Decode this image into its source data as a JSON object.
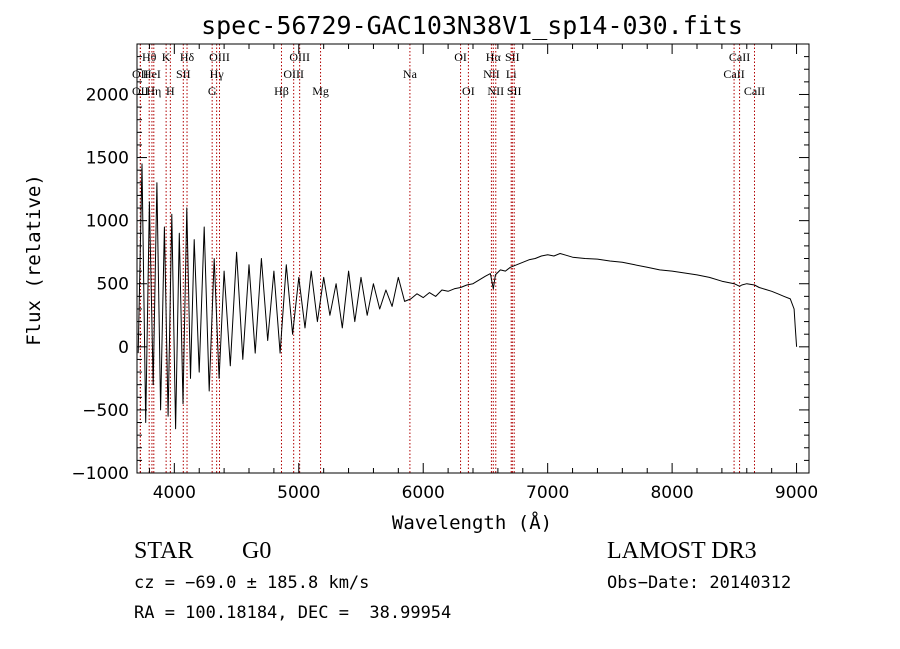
{
  "chart_data": {
    "type": "line",
    "title": "spec-56729-GAC103N38V1_sp14-030.fits",
    "xlabel": "Wavelength (Å)",
    "ylabel": "Flux (relative)",
    "xlim": [
      3700,
      9100
    ],
    "ylim": [
      -1000,
      2400
    ],
    "xticks": [
      4000,
      5000,
      6000,
      7000,
      8000,
      9000
    ],
    "yticks": [
      -1000,
      -500,
      0,
      500,
      1000,
      1500,
      2000
    ],
    "xtick_labels": [
      "4000",
      "5000",
      "6000",
      "7000",
      "8000",
      "9000"
    ],
    "ytick_labels": [
      "−1000",
      "−500",
      "0",
      "500",
      "1000",
      "1500",
      "2000"
    ],
    "series": [
      {
        "name": "spectrum",
        "color": "#000000",
        "x": [
          3710,
          3740,
          3770,
          3800,
          3830,
          3860,
          3890,
          3920,
          3950,
          3980,
          4010,
          4040,
          4070,
          4100,
          4130,
          4160,
          4200,
          4240,
          4280,
          4320,
          4360,
          4400,
          4450,
          4500,
          4550,
          4600,
          4650,
          4700,
          4750,
          4800,
          4850,
          4900,
          4950,
          5000,
          5050,
          5100,
          5150,
          5200,
          5250,
          5300,
          5350,
          5400,
          5450,
          5500,
          5550,
          5600,
          5650,
          5700,
          5750,
          5800,
          5850,
          5900,
          5950,
          6000,
          6050,
          6100,
          6150,
          6200,
          6250,
          6300,
          6350,
          6400,
          6450,
          6500,
          6540,
          6563,
          6580,
          6620,
          6660,
          6700,
          6750,
          6800,
          6850,
          6900,
          6950,
          7000,
          7050,
          7100,
          7150,
          7200,
          7300,
          7400,
          7500,
          7600,
          7700,
          7800,
          7900,
          8000,
          8100,
          8200,
          8300,
          8400,
          8450,
          8500,
          8542,
          8560,
          8600,
          8662,
          8700,
          8750,
          8800,
          8850,
          8900,
          8950,
          8980,
          8990,
          9000
        ],
        "values": [
          -50,
          1450,
          -600,
          1150,
          -300,
          1300,
          -500,
          950,
          -550,
          1050,
          -650,
          900,
          -450,
          1100,
          -250,
          850,
          -200,
          950,
          -350,
          700,
          -250,
          600,
          -150,
          750,
          -100,
          650,
          -50,
          700,
          50,
          600,
          -50,
          650,
          100,
          550,
          150,
          600,
          200,
          550,
          250,
          500,
          150,
          600,
          200,
          550,
          250,
          500,
          300,
          450,
          320,
          550,
          360,
          380,
          420,
          390,
          430,
          400,
          450,
          440,
          460,
          470,
          490,
          500,
          530,
          560,
          580,
          460,
          570,
          610,
          600,
          630,
          650,
          670,
          690,
          700,
          720,
          730,
          720,
          740,
          725,
          710,
          700,
          695,
          680,
          670,
          650,
          630,
          610,
          600,
          585,
          570,
          550,
          520,
          510,
          500,
          480,
          490,
          500,
          490,
          470,
          455,
          440,
          420,
          400,
          380,
          300,
          150,
          0
        ]
      }
    ],
    "lines": [
      {
        "label": "OII",
        "x": 3727,
        "row": 2
      },
      {
        "label": "OII",
        "x": 3727,
        "row": 3
      },
      {
        "label": "Hθ",
        "x": 3798,
        "row": 1
      },
      {
        "label": "HeI",
        "x": 3820,
        "row": 2
      },
      {
        "label": "Hη",
        "x": 3835,
        "row": 3
      },
      {
        "label": "K",
        "x": 3934,
        "row": 1
      },
      {
        "label": "H",
        "x": 3968,
        "row": 3
      },
      {
        "label": "SII",
        "x": 4072,
        "row": 2
      },
      {
        "label": "Hδ",
        "x": 4102,
        "row": 1
      },
      {
        "label": "G",
        "x": 4304,
        "row": 3
      },
      {
        "label": "Hγ",
        "x": 4340,
        "row": 2
      },
      {
        "label": "OIII",
        "x": 4363,
        "row": 1
      },
      {
        "label": "Hβ",
        "x": 4861,
        "row": 3
      },
      {
        "label": "OIII",
        "x": 4959,
        "row": 2
      },
      {
        "label": "OIII",
        "x": 5007,
        "row": 1
      },
      {
        "label": "Mg",
        "x": 5175,
        "row": 3
      },
      {
        "label": "Na",
        "x": 5893,
        "row": 2
      },
      {
        "label": "OI",
        "x": 6300,
        "row": 1
      },
      {
        "label": "OI",
        "x": 6363,
        "row": 3
      },
      {
        "label": "NII",
        "x": 6548,
        "row": 2
      },
      {
        "label": "Hα",
        "x": 6563,
        "row": 1
      },
      {
        "label": "NII",
        "x": 6583,
        "row": 3
      },
      {
        "label": "Li",
        "x": 6707,
        "row": 2
      },
      {
        "label": "SII",
        "x": 6716,
        "row": 1
      },
      {
        "label": "SII",
        "x": 6731,
        "row": 3
      },
      {
        "label": "CaII",
        "x": 8498,
        "row": 2
      },
      {
        "label": "CaII",
        "x": 8542,
        "row": 1
      },
      {
        "label": "CaII",
        "x": 8662,
        "row": 3
      }
    ]
  },
  "info": {
    "class": "STAR",
    "subclass": "G0",
    "survey": "LAMOST DR3",
    "cz": "cz = −69.0 ± 185.8 km/s",
    "obs_date": "Obs−Date: 20140312",
    "radec": "RA = 100.18184, DEC =  38.99954"
  },
  "colors": {
    "line_marker": "#b00000",
    "spectrum": "#000000"
  }
}
